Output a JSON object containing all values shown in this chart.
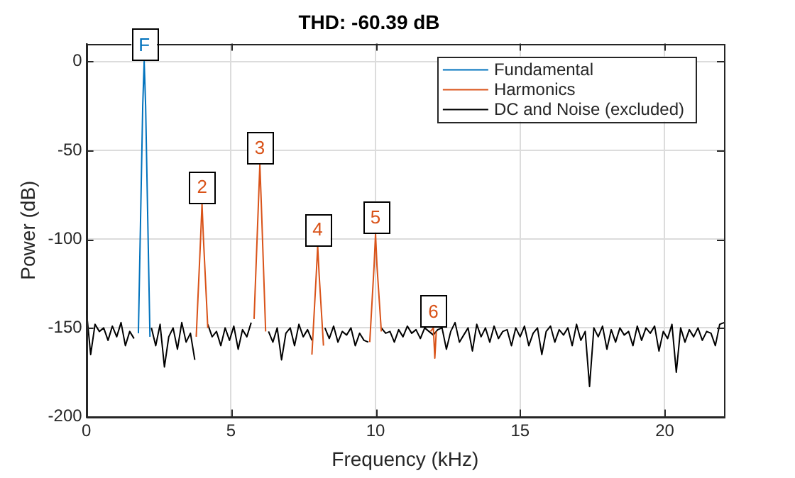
{
  "chart_data": {
    "type": "line",
    "title": "THD: -60.39 dB",
    "xlabel": "Frequency (kHz)",
    "ylabel": "Power (dB)",
    "xlim": [
      0,
      22.05
    ],
    "xticks": [
      0,
      5,
      10,
      15,
      20
    ],
    "ylim": [
      -200,
      10
    ],
    "yticks": [
      -200,
      -150,
      -100,
      -50,
      0
    ],
    "grid": true,
    "legend": "top right",
    "marker": "none",
    "annotations": [
      {
        "text": "F",
        "x": 2,
        "y": 0
      },
      {
        "text": "2",
        "x": 4,
        "y": -80
      },
      {
        "text": "3",
        "x": 6,
        "y": -58
      },
      {
        "text": "4",
        "x": 8,
        "y": -104
      },
      {
        "text": "5",
        "x": 10,
        "y": -97
      },
      {
        "text": "6",
        "x": 12,
        "y": -150
      }
    ],
    "series": [
      {
        "name": "Fundamental",
        "color": "#0072bd",
        "x": [
          1.8,
          1.95,
          2.0,
          2.05,
          2.2
        ],
        "values": [
          -153,
          -25,
          0,
          -25,
          -155
        ]
      },
      {
        "name": "Harmonics",
        "color": "#d95319",
        "x": [
          3.8,
          3.95,
          4.0,
          4.05,
          4.2,
          5.0,
          5.8,
          5.95,
          6.0,
          6.05,
          6.2,
          7.0,
          7.8,
          7.95,
          8.0,
          8.05,
          8.2,
          9.0,
          9.8,
          9.95,
          10.0,
          10.05,
          10.2,
          11.0,
          11.9,
          12.0,
          12.05,
          12.1
        ],
        "values": [
          -155,
          -100,
          -80,
          -100,
          -150,
          null,
          -145,
          -80,
          -58,
          -80,
          -152,
          null,
          -165,
          -120,
          -104,
          -120,
          -160,
          null,
          -158,
          -115,
          -97,
          -115,
          -152,
          null,
          -152,
          -150,
          -167,
          -152
        ]
      },
      {
        "name": "DC and Noise (excluded)",
        "color": "#000000",
        "x": [
          0,
          0.15,
          0.3,
          0.45,
          0.6,
          0.75,
          0.9,
          1.05,
          1.2,
          1.35,
          1.5,
          1.65,
          1.8,
          1.95,
          2.1,
          2.25,
          2.4,
          2.55,
          2.7,
          2.85,
          3.0,
          3.15,
          3.3,
          3.45,
          3.6,
          3.75,
          3.9,
          4.05,
          4.2,
          4.35,
          4.5,
          4.65,
          4.8,
          4.95,
          5.1,
          5.25,
          5.4,
          5.55,
          5.7,
          5.85,
          6.0,
          6.15,
          6.3,
          6.45,
          6.6,
          6.75,
          6.9,
          7.05,
          7.2,
          7.35,
          7.5,
          7.65,
          7.8,
          7.95,
          8.1,
          8.25,
          8.4,
          8.55,
          8.7,
          8.85,
          9.0,
          9.15,
          9.3,
          9.45,
          9.6,
          9.75,
          9.9,
          10.05,
          10.2,
          10.35,
          10.5,
          10.65,
          10.8,
          10.95,
          11.1,
          11.25,
          11.4,
          11.55,
          11.7,
          11.85,
          12.0,
          12.15,
          12.3,
          12.45,
          12.6,
          12.75,
          12.9,
          13.05,
          13.2,
          13.35,
          13.5,
          13.65,
          13.8,
          13.95,
          14.1,
          14.25,
          14.4,
          14.55,
          14.7,
          14.85,
          15.0,
          15.15,
          15.3,
          15.45,
          15.6,
          15.75,
          15.9,
          16.05,
          16.2,
          16.35,
          16.5,
          16.65,
          16.8,
          16.95,
          17.1,
          17.25,
          17.4,
          17.55,
          17.7,
          17.85,
          18.0,
          18.15,
          18.3,
          18.45,
          18.6,
          18.75,
          18.9,
          19.05,
          19.2,
          19.35,
          19.5,
          19.65,
          19.8,
          19.95,
          20.1,
          20.25,
          20.4,
          20.55,
          20.7,
          20.85,
          21.0,
          21.15,
          21.3,
          21.45,
          21.6,
          21.75,
          21.9,
          22.05
        ],
        "values": [
          -140,
          -165,
          -148,
          -152,
          -150,
          -157,
          -149,
          -155,
          -147,
          -160,
          -152,
          -156,
          null,
          null,
          null,
          -150,
          -160,
          -148,
          -172,
          -155,
          -150,
          -162,
          -147,
          -158,
          -153,
          -168,
          null,
          null,
          -148,
          -155,
          -152,
          -160,
          -150,
          -157,
          -149,
          -162,
          -151,
          -155,
          -147,
          null,
          null,
          null,
          -152,
          -158,
          -150,
          -168,
          -153,
          -150,
          -160,
          -148,
          -155,
          -151,
          -157,
          null,
          null,
          -150,
          -156,
          -149,
          -158,
          -152,
          -154,
          -150,
          -160,
          -153,
          -157,
          -158,
          null,
          null,
          -150,
          -153,
          -152,
          -158,
          -151,
          -155,
          -149,
          -153,
          -151,
          -156,
          -150,
          -152,
          -154,
          -151,
          -150,
          -162,
          -152,
          -147,
          -158,
          -154,
          -150,
          -163,
          -148,
          -155,
          -150,
          -158,
          -149,
          -156,
          -152,
          -151,
          -160,
          -150,
          -155,
          -149,
          -160,
          -153,
          -150,
          -165,
          -152,
          -149,
          -158,
          -151,
          -154,
          -150,
          -160,
          -148,
          -157,
          -152,
          -183,
          -150,
          -155,
          -149,
          -162,
          -151,
          -158,
          -150,
          -154,
          -152,
          -160,
          -149,
          -157,
          -150,
          -153,
          -149,
          -163,
          -152,
          -156,
          -148,
          -175,
          -150,
          -158,
          -151,
          -155,
          -150,
          -157,
          -152,
          -153,
          -160,
          -148,
          -147
        ]
      }
    ]
  }
}
